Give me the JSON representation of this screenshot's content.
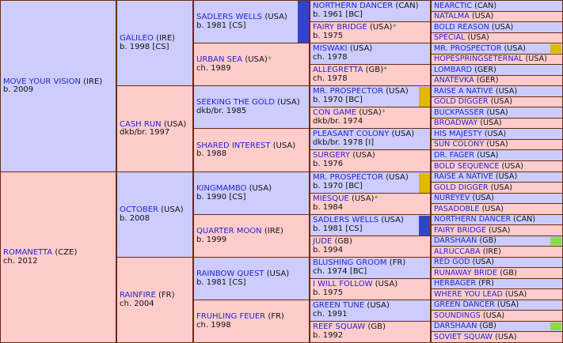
{
  "colors": {
    "male": "#ccccff",
    "female": "#ffcccc",
    "border": "#6b2b12",
    "name_link": "#2525cc",
    "star": "#2e9e2e",
    "inbreeding_blue": "#3344cc",
    "inbreeding_gold": "#e2b800",
    "inbreeding_green": "#88dd44"
  },
  "gen1": [
    {
      "name": "MOVE YOUR VISION",
      "country": "(IRE)",
      "info": "b. 2009",
      "sex": "m"
    },
    {
      "name": "ROMANETTA",
      "country": "(CZE)",
      "info": "ch. 2012",
      "sex": "f"
    }
  ],
  "gen2": [
    {
      "name": "GALILEO",
      "country": "(IRE)",
      "info": "b. 1998 [CS]",
      "sex": "m"
    },
    {
      "name": "CASH RUN",
      "country": "(USA)",
      "info": "dkb/br. 1997",
      "sex": "f"
    },
    {
      "name": "OCTOBER",
      "country": "(USA)",
      "info": "b. 2008",
      "sex": "m"
    },
    {
      "name": "RAINFIRE",
      "country": "(FR)",
      "info": "ch. 2004",
      "sex": "f"
    }
  ],
  "gen3": [
    {
      "name": "SADLERS WELLS",
      "country": "(USA)",
      "info": "b. 1981 [CS]",
      "sex": "m",
      "star": "",
      "bar": "blue"
    },
    {
      "name": "URBAN SEA",
      "country": "(USA)",
      "info": "ch. 1989",
      "sex": "f",
      "star": "*",
      "bar": ""
    },
    {
      "name": "SEEKING THE GOLD",
      "country": "(USA)",
      "info": "dkb/br. 1985",
      "sex": "m",
      "star": "",
      "bar": ""
    },
    {
      "name": "SHARED INTEREST",
      "country": "(USA)",
      "info": "b. 1988",
      "sex": "f",
      "star": "",
      "bar": ""
    },
    {
      "name": "KINGMAMBO",
      "country": "(USA)",
      "info": "b. 1990 [CS]",
      "sex": "m",
      "star": "",
      "bar": ""
    },
    {
      "name": "QUARTER MOON",
      "country": "(IRE)",
      "info": "b. 1999",
      "sex": "f",
      "star": "",
      "bar": ""
    },
    {
      "name": "RAINBOW QUEST",
      "country": "(USA)",
      "info": "b. 1981 [CS]",
      "sex": "m",
      "star": "",
      "bar": ""
    },
    {
      "name": "FRUHLING FEUER",
      "country": "(FR)",
      "info": "ch. 1998",
      "sex": "f",
      "star": "",
      "bar": ""
    }
  ],
  "gen4": [
    {
      "name": "NORTHERN DANCER",
      "country": "(CAN)",
      "info": "b. 1961 [BC]",
      "sex": "m",
      "star": "",
      "bar": ""
    },
    {
      "name": "FAIRY BRIDGE",
      "country": "(USA)",
      "info": "b. 1975",
      "sex": "f",
      "star": "*",
      "bar": ""
    },
    {
      "name": "MISWAKI",
      "country": "(USA)",
      "info": "ch. 1978",
      "sex": "m",
      "star": "",
      "bar": ""
    },
    {
      "name": "ALLEGRETTA",
      "country": "(GB)",
      "info": "ch. 1978",
      "sex": "f",
      "star": "*",
      "bar": ""
    },
    {
      "name": "MR. PROSPECTOR",
      "country": "(USA)",
      "info": "b. 1970 [BC]",
      "sex": "m",
      "star": "",
      "bar": "gold"
    },
    {
      "name": "CON GAME",
      "country": "(USA)",
      "info": "dkb/br. 1974",
      "sex": "f",
      "star": "*",
      "bar": ""
    },
    {
      "name": "PLEASANT COLONY",
      "country": "(USA)",
      "info": "dkb/br. 1978 [I]",
      "sex": "m",
      "star": "",
      "bar": ""
    },
    {
      "name": "SURGERY",
      "country": "(USA)",
      "info": "b. 1976",
      "sex": "f",
      "star": "",
      "bar": ""
    },
    {
      "name": "MR. PROSPECTOR",
      "country": "(USA)",
      "info": "b. 1970 [BC]",
      "sex": "m",
      "star": "",
      "bar": "gold"
    },
    {
      "name": "MIESQUE",
      "country": "(USA)",
      "info": "b. 1984",
      "sex": "f",
      "star": "*",
      "bar": ""
    },
    {
      "name": "SADLERS WELLS",
      "country": "(USA)",
      "info": "b. 1981 [CS]",
      "sex": "m",
      "star": "",
      "bar": "blue"
    },
    {
      "name": "JUDE",
      "country": "(GB)",
      "info": "b. 1994",
      "sex": "f",
      "star": "",
      "bar": ""
    },
    {
      "name": "BLUSHING GROOM",
      "country": "(FR)",
      "info": "ch. 1974 [BC]",
      "sex": "m",
      "star": "",
      "bar": ""
    },
    {
      "name": "I WILL FOLLOW",
      "country": "(USA)",
      "info": "b. 1975",
      "sex": "f",
      "star": "",
      "bar": ""
    },
    {
      "name": "GREEN TUNE",
      "country": "(USA)",
      "info": "ch. 1991",
      "sex": "m",
      "star": "",
      "bar": ""
    },
    {
      "name": "REEF SQUAW",
      "country": "(GB)",
      "info": "b. 1992",
      "sex": "f",
      "star": "",
      "bar": ""
    }
  ],
  "gen5": [
    {
      "name": "NEARCTIC",
      "country": "(CAN)",
      "sex": "m",
      "bar": ""
    },
    {
      "name": "NATALMA",
      "country": "(USA)",
      "sex": "f",
      "bar": ""
    },
    {
      "name": "BOLD REASON",
      "country": "(USA)",
      "sex": "m",
      "bar": ""
    },
    {
      "name": "SPECIAL",
      "country": "(USA)",
      "sex": "f",
      "bar": ""
    },
    {
      "name": "MR. PROSPECTOR",
      "country": "(USA)",
      "sex": "m",
      "bar": "gold"
    },
    {
      "name": "HOPESPRINGSETERNAL",
      "country": "(USA)",
      "sex": "f",
      "bar": ""
    },
    {
      "name": "LOMBARD",
      "country": "(GER)",
      "sex": "m",
      "bar": ""
    },
    {
      "name": "ANATEVKA",
      "country": "(GER)",
      "sex": "f",
      "bar": ""
    },
    {
      "name": "RAISE A NATIVE",
      "country": "(USA)",
      "sex": "m",
      "bar": ""
    },
    {
      "name": "GOLD DIGGER",
      "country": "(USA)",
      "sex": "f",
      "bar": ""
    },
    {
      "name": "BUCKPASSER",
      "country": "(USA)",
      "sex": "m",
      "bar": ""
    },
    {
      "name": "BROADWAY",
      "country": "(USA)",
      "sex": "f",
      "bar": ""
    },
    {
      "name": "HIS MAJESTY",
      "country": "(USA)",
      "sex": "m",
      "bar": ""
    },
    {
      "name": "SUN COLONY",
      "country": "(USA)",
      "sex": "f",
      "bar": ""
    },
    {
      "name": "DR. FAGER",
      "country": "(USA)",
      "sex": "m",
      "bar": ""
    },
    {
      "name": "BOLD SEQUENCE",
      "country": "(USA)",
      "sex": "f",
      "bar": ""
    },
    {
      "name": "RAISE A NATIVE",
      "country": "(USA)",
      "sex": "m",
      "bar": ""
    },
    {
      "name": "GOLD DIGGER",
      "country": "(USA)",
      "sex": "f",
      "bar": ""
    },
    {
      "name": "NUREYEV",
      "country": "(USA)",
      "sex": "m",
      "bar": ""
    },
    {
      "name": "PASADOBLE",
      "country": "(USA)",
      "sex": "f",
      "bar": ""
    },
    {
      "name": "NORTHERN DANCER",
      "country": "(CAN)",
      "sex": "m",
      "bar": ""
    },
    {
      "name": "FAIRY BRIDGE",
      "country": "(USA)",
      "sex": "f",
      "bar": ""
    },
    {
      "name": "DARSHAAN",
      "country": "(GB)",
      "sex": "m",
      "bar": "green"
    },
    {
      "name": "ALRUCCABA",
      "country": "(IRE)",
      "sex": "f",
      "bar": ""
    },
    {
      "name": "RED GOD",
      "country": "(USA)",
      "sex": "m",
      "bar": ""
    },
    {
      "name": "RUNAWAY BRIDE",
      "country": "(GB)",
      "sex": "f",
      "bar": ""
    },
    {
      "name": "HERBAGER",
      "country": "(FR)",
      "sex": "m",
      "bar": ""
    },
    {
      "name": "WHERE YOU LEAD",
      "country": "(USA)",
      "sex": "f",
      "bar": ""
    },
    {
      "name": "GREEN DANCER",
      "country": "(USA)",
      "sex": "m",
      "bar": ""
    },
    {
      "name": "SOUNDINGS",
      "country": "(USA)",
      "sex": "f",
      "bar": ""
    },
    {
      "name": "DARSHAAN",
      "country": "(GB)",
      "sex": "m",
      "bar": "green"
    },
    {
      "name": "SOVIET SQUAW",
      "country": "(USA)",
      "sex": "f",
      "bar": ""
    }
  ]
}
